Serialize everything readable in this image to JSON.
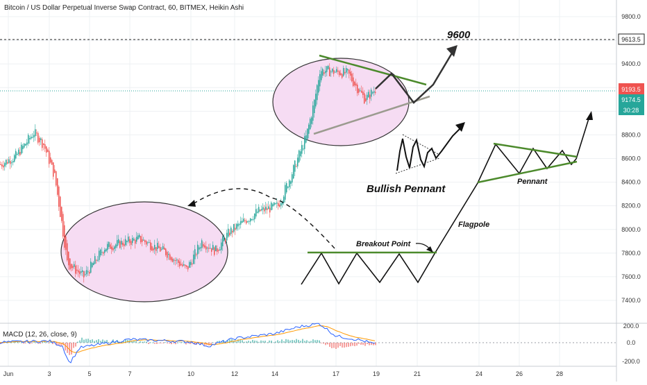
{
  "title": "Bitcoin / US Dollar Perpetual Inverse Swap Contract, 60, BITMEX, Heikin Ashi",
  "colors": {
    "up": "#26a69a",
    "down": "#ef5350",
    "pattern_green": "#4c8a2c",
    "ellipse_fill": "#f6dcf3",
    "ellipse_stroke": "#333333",
    "grid": "#eef0f3",
    "ema_blue": "#2962ff",
    "ema_orange": "#ff9800",
    "label_red": "#ef5350",
    "label_teal": "#26a69a",
    "label_dark": "#222222"
  },
  "annotations": {
    "target": "9600",
    "bullish_pennant": "Bullish Pennant",
    "breakout_point": "Breakout Point",
    "flagpole": "Flagpole",
    "pennant": "Pennant"
  },
  "price_labels": {
    "target_line": "9613.5",
    "last": "9193.5",
    "ema": "9174.5",
    "countdown": "30:28"
  },
  "macd": {
    "label": "MACD (12, 26, close, 9)",
    "ticks": [
      "200.0",
      "0.0",
      "-200.0"
    ]
  },
  "chart_data": {
    "type": "candlestick",
    "title": "Bitcoin / US Dollar Perpetual Inverse Swap Contract, 60, BITMEX, Heikin Ashi",
    "y_ticks": [
      9800,
      9600,
      9400,
      9200,
      9000,
      8800,
      8600,
      8400,
      8200,
      8000,
      7800,
      7600,
      7400
    ],
    "y_tick_labels": [
      "9800.0",
      "9600.0",
      "9400.0",
      "9200.0",
      "9000.0",
      "8800.0",
      "8600.0",
      "8400.0",
      "8200.0",
      "8000.0",
      "7800.0",
      "7600.0",
      "7400.0"
    ],
    "x_tick_labels": [
      "Jun",
      "3",
      "5",
      "7",
      "10",
      "12",
      "14",
      "17",
      "19",
      "21",
      "24",
      "26",
      "28"
    ],
    "target_price": 9613.5,
    "last_price": 9193.5,
    "ema_price": 9174.5,
    "price_path": [
      {
        "date": "Jun",
        "price": 8550
      },
      {
        "date": "2",
        "price": 8620
      },
      {
        "date": "2",
        "price": 8820
      },
      {
        "date": "3",
        "price": 8720
      },
      {
        "date": "3",
        "price": 8450
      },
      {
        "date": "4",
        "price": 8060
      },
      {
        "date": "4",
        "price": 7720
      },
      {
        "date": "5",
        "price": 7600
      },
      {
        "date": "6",
        "price": 7850
      },
      {
        "date": "7",
        "price": 7920
      },
      {
        "date": "8",
        "price": 7800
      },
      {
        "date": "10",
        "price": 7660
      },
      {
        "date": "10",
        "price": 7900
      },
      {
        "date": "11",
        "price": 7820
      },
      {
        "date": "12",
        "price": 7980
      },
      {
        "date": "13",
        "price": 8150
      },
      {
        "date": "14",
        "price": 8200
      },
      {
        "date": "15",
        "price": 8480
      },
      {
        "date": "15",
        "price": 8780
      },
      {
        "date": "16",
        "price": 9080
      },
      {
        "date": "16",
        "price": 9350
      },
      {
        "date": "17",
        "price": 9320
      },
      {
        "date": "18",
        "price": 9100
      },
      {
        "date": "19",
        "price": 9193.5
      }
    ],
    "macd_line": [
      {
        "date": "Jun",
        "value": 5
      },
      {
        "date": "3",
        "value": 20
      },
      {
        "date": "4",
        "value": -40
      },
      {
        "date": "5",
        "value": -250
      },
      {
        "date": "6",
        "value": -60
      },
      {
        "date": "7",
        "value": 40
      },
      {
        "date": "10",
        "value": 10
      },
      {
        "date": "11",
        "value": -40
      },
      {
        "date": "12",
        "value": 50
      },
      {
        "date": "14",
        "value": 110
      },
      {
        "date": "15",
        "value": 190
      },
      {
        "date": "16",
        "value": 230
      },
      {
        "date": "17",
        "value": 80
      },
      {
        "date": "18",
        "value": 30
      },
      {
        "date": "19",
        "value": -20
      }
    ]
  }
}
